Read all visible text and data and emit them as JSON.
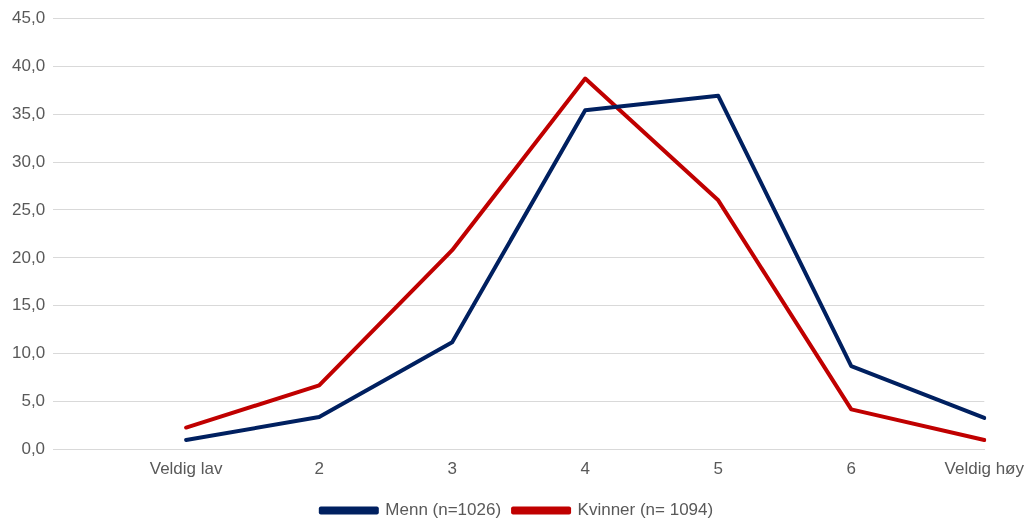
{
  "chart_data": {
    "type": "line",
    "categories": [
      null,
      "Veldig lav",
      "2",
      "3",
      "4",
      "5",
      "6",
      "Veldig høy"
    ],
    "series": [
      {
        "name": "Menn (n=1026)",
        "color": "#002060",
        "values": [
          null,
          1.0,
          3.4,
          11.2,
          35.4,
          36.9,
          8.7,
          3.3
        ]
      },
      {
        "name": "Kvinner (n= 1094)",
        "color": "#c00000",
        "values": [
          null,
          2.3,
          6.7,
          20.8,
          38.7,
          26.0,
          4.2,
          1.0
        ]
      }
    ],
    "ylim": [
      0,
      45
    ],
    "yticks": [
      {
        "value": 0,
        "label": "0,0"
      },
      {
        "value": 5,
        "label": "5,0"
      },
      {
        "value": 10,
        "label": "10,0"
      },
      {
        "value": 15,
        "label": "15,0"
      },
      {
        "value": 20,
        "label": "20,0"
      },
      {
        "value": 25,
        "label": "25,0"
      },
      {
        "value": 30,
        "label": "30,0"
      },
      {
        "value": 35,
        "label": "35,0"
      },
      {
        "value": 40,
        "label": "40,0"
      },
      {
        "value": 45,
        "label": "45,0"
      }
    ],
    "grid": "y",
    "legend": "bottom",
    "marker": "none",
    "line_style": "solid"
  }
}
